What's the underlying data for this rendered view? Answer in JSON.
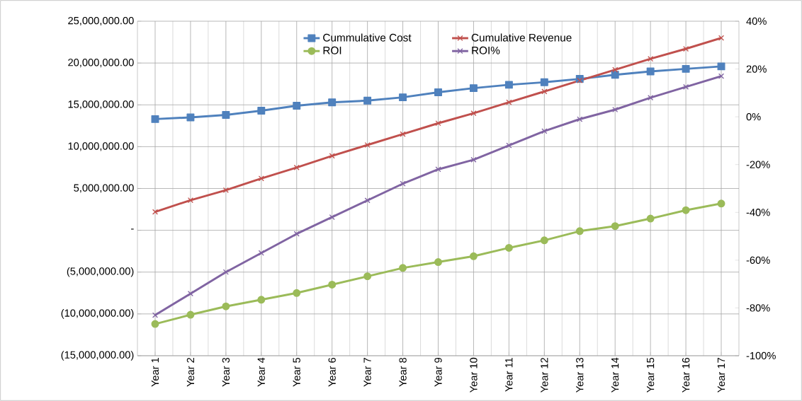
{
  "chart_data": {
    "type": "line",
    "categories": [
      "Year 1",
      "Year 2",
      "Year 3",
      "Year 4",
      "Year 5",
      "Year 6",
      "Year 7",
      "Year 8",
      "Year 9",
      "Year 10",
      "Year 11",
      "Year 12",
      "Year 13",
      "Year 14",
      "Year 15",
      "Year 16",
      "Year 17"
    ],
    "series": [
      {
        "name": "Cummulative Cost",
        "color": "#4f81bd",
        "marker": "square",
        "values": [
          13300000,
          13500000,
          13800000,
          14300000,
          14900000,
          15300000,
          15500000,
          15900000,
          16500000,
          17000000,
          17400000,
          17700000,
          18100000,
          18600000,
          19000000,
          19300000,
          19600000
        ]
      },
      {
        "name": "Cumulative Revenue",
        "color": "#c0504d",
        "marker": "cross",
        "values": [
          2200000,
          3600000,
          4800000,
          6200000,
          7500000,
          8900000,
          10200000,
          11500000,
          12800000,
          14000000,
          15300000,
          16600000,
          17900000,
          19200000,
          20500000,
          21700000,
          23000000
        ]
      },
      {
        "name": "ROI",
        "color": "#9bbb59",
        "marker": "circle",
        "values": [
          -11200000,
          -10100000,
          -9100000,
          -8300000,
          -7500000,
          -6500000,
          -5500000,
          -4500000,
          -3800000,
          -3100000,
          -2100000,
          -1200000,
          -100000,
          500000,
          1400000,
          2400000,
          3200000
        ]
      },
      {
        "name": "ROI%",
        "color": "#8064a2",
        "marker": "cross",
        "axis": "y2",
        "values": [
          -83,
          -74,
          -65,
          -57,
          -49,
          -42,
          -35,
          -28,
          -22,
          -18,
          -12,
          -6,
          -1,
          3,
          8,
          12.5,
          17
        ]
      }
    ],
    "ylim": [
      -15000000,
      25000000
    ],
    "yticks": [
      {
        "value": -15000000,
        "label": "(15,000,000.00)"
      },
      {
        "value": -10000000,
        "label": "(10,000,000.00)"
      },
      {
        "value": -5000000,
        "label": "(5,000,000.00)"
      },
      {
        "value": 0,
        "label": "-"
      },
      {
        "value": 5000000,
        "label": "5,000,000.00"
      },
      {
        "value": 10000000,
        "label": "10,000,000.00"
      },
      {
        "value": 15000000,
        "label": "15,000,000.00"
      },
      {
        "value": 20000000,
        "label": "20,000,000.00"
      },
      {
        "value": 25000000,
        "label": "25,000,000.00"
      }
    ],
    "y2lim": [
      -100,
      40
    ],
    "y2ticks": [
      {
        "value": -100,
        "label": "-100%"
      },
      {
        "value": -80,
        "label": "-80%"
      },
      {
        "value": -60,
        "label": "-60%"
      },
      {
        "value": -40,
        "label": "-40%"
      },
      {
        "value": -20,
        "label": "-20%"
      },
      {
        "value": 0,
        "label": "0%"
      },
      {
        "value": 20,
        "label": "20%"
      },
      {
        "value": 40,
        "label": "40%"
      }
    ],
    "grid": true,
    "legend": "top"
  }
}
